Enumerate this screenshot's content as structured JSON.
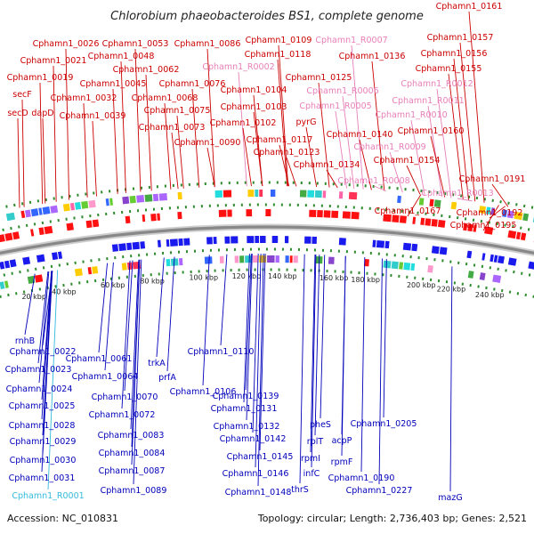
{
  "title": "Chlorobium phaeobacteroides BS1, complete genome",
  "footer": {
    "accession": "Accession: NC_010831",
    "summary": "Topology: circular; Length: 2,736,403 bp; Genes: 2,521"
  },
  "colors": {
    "forward_label": "#cc0000",
    "rna_label": "#e87fb8",
    "reverse_label": "#0000bb",
    "reverse_rna_label": "#33bbdd",
    "forward_arrow": "#ff1111",
    "reverse_arrow": "#1a1aee",
    "backbone": "#888888",
    "tick_dot": "#2e8b2e"
  },
  "ticks": [
    {
      "label": "20 kbp"
    },
    {
      "label": "40 kbp"
    },
    {
      "label": "60 kbp"
    },
    {
      "label": "80 kbp"
    },
    {
      "label": "100 kbp"
    },
    {
      "label": "120 kbp"
    },
    {
      "label": "140 kbp"
    },
    {
      "label": "160 kbp"
    },
    {
      "label": "180 kbp"
    },
    {
      "label": "200 kbp"
    },
    {
      "label": "220 kbp"
    },
    {
      "label": "240 kbp"
    }
  ],
  "top_labels": [
    {
      "text": "Cphamn1_0161",
      "kind": "gene"
    },
    {
      "text": "Cphamn1_0026",
      "kind": "gene"
    },
    {
      "text": "Cphamn1_0053",
      "kind": "gene"
    },
    {
      "text": "Cphamn1_0086",
      "kind": "gene"
    },
    {
      "text": "Cphamn1_0109",
      "kind": "gene"
    },
    {
      "text": "Cphamn1_R0007",
      "kind": "rna"
    },
    {
      "text": "Cphamn1_0157",
      "kind": "gene"
    },
    {
      "text": "Cphamn1_0021",
      "kind": "gene"
    },
    {
      "text": "Cphamn1_0048",
      "kind": "gene"
    },
    {
      "text": "Cphamn1_0118",
      "kind": "gene"
    },
    {
      "text": "Cphamn1_0136",
      "kind": "gene"
    },
    {
      "text": "Cphamn1_0156",
      "kind": "gene"
    },
    {
      "text": "Cphamn1_0019",
      "kind": "gene"
    },
    {
      "text": "Cphamn1_0062",
      "kind": "gene"
    },
    {
      "text": "Cphamn1_R0002",
      "kind": "rna"
    },
    {
      "text": "Cphamn1_0155",
      "kind": "gene"
    },
    {
      "text": "Cphamn1_0045",
      "kind": "gene"
    },
    {
      "text": "Cphamn1_0076",
      "kind": "gene"
    },
    {
      "text": "Cphamn1_0125",
      "kind": "gene"
    },
    {
      "text": "Cphamn1_R0012",
      "kind": "rna"
    },
    {
      "text": "secF",
      "kind": "gene"
    },
    {
      "text": "Cphamn1_0032",
      "kind": "gene"
    },
    {
      "text": "Cphamn1_0068",
      "kind": "gene"
    },
    {
      "text": "Cphamn1_0104",
      "kind": "gene"
    },
    {
      "text": "Cphamn1_R0006",
      "kind": "rna"
    },
    {
      "text": "Cphamn1_R0011",
      "kind": "rna"
    },
    {
      "text": "secD",
      "kind": "gene"
    },
    {
      "text": "dapD",
      "kind": "gene"
    },
    {
      "text": "Cphamn1_0039",
      "kind": "gene"
    },
    {
      "text": "Cphamn1_0075",
      "kind": "gene"
    },
    {
      "text": "Cphamn1_0103",
      "kind": "gene"
    },
    {
      "text": "Cphamn1_R0005",
      "kind": "rna"
    },
    {
      "text": "Cphamn1_R0010",
      "kind": "rna"
    },
    {
      "text": "Cphamn1_0073",
      "kind": "gene"
    },
    {
      "text": "Cphamn1_0102",
      "kind": "gene"
    },
    {
      "text": "pyrG",
      "kind": "gene"
    },
    {
      "text": "Cphamn1_0160",
      "kind": "gene"
    },
    {
      "text": "Cphamn1_0090",
      "kind": "gene"
    },
    {
      "text": "Cphamn1_0117",
      "kind": "gene"
    },
    {
      "text": "Cphamn1_0140",
      "kind": "gene"
    },
    {
      "text": "Cphamn1_R0009",
      "kind": "rna"
    },
    {
      "text": "Cphamn1_0123",
      "kind": "gene"
    },
    {
      "text": "Cphamn1_0154",
      "kind": "gene"
    },
    {
      "text": "Cphamn1_0134",
      "kind": "gene"
    },
    {
      "text": "Cphamn1_R0008",
      "kind": "rna"
    },
    {
      "text": "Cphamn1_0191",
      "kind": "gene"
    },
    {
      "text": "Cphamn1_R0013",
      "kind": "rna"
    },
    {
      "text": "Cphamn1_0167",
      "kind": "gene"
    },
    {
      "text": "Cphamn1_0192",
      "kind": "gene"
    },
    {
      "text": "Cphamn1_0195",
      "kind": "gene"
    }
  ],
  "bottom_labels": [
    {
      "text": "rnhB",
      "kind": "gene"
    },
    {
      "text": "Cphamn1_0022",
      "kind": "gene"
    },
    {
      "text": "Cphamn1_0023",
      "kind": "gene"
    },
    {
      "text": "Cphamn1_0024",
      "kind": "gene"
    },
    {
      "text": "Cphamn1_0025",
      "kind": "gene"
    },
    {
      "text": "Cphamn1_0028",
      "kind": "gene"
    },
    {
      "text": "Cphamn1_0029",
      "kind": "gene"
    },
    {
      "text": "Cphamn1_0030",
      "kind": "gene"
    },
    {
      "text": "Cphamn1_0031",
      "kind": "gene"
    },
    {
      "text": "Cphamn1_R0001",
      "kind": "rna"
    },
    {
      "text": "Cphamn1_0061",
      "kind": "gene"
    },
    {
      "text": "Cphamn1_0064",
      "kind": "gene"
    },
    {
      "text": "Cphamn1_0070",
      "kind": "gene"
    },
    {
      "text": "Cphamn1_0072",
      "kind": "gene"
    },
    {
      "text": "Cphamn1_0083",
      "kind": "gene"
    },
    {
      "text": "Cphamn1_0084",
      "kind": "gene"
    },
    {
      "text": "Cphamn1_0087",
      "kind": "gene"
    },
    {
      "text": "Cphamn1_0089",
      "kind": "gene"
    },
    {
      "text": "trkA",
      "kind": "gene"
    },
    {
      "text": "prfA",
      "kind": "gene"
    },
    {
      "text": "Cphamn1_0106",
      "kind": "gene"
    },
    {
      "text": "Cphamn1_0110",
      "kind": "gene"
    },
    {
      "text": "Cphamn1_0139",
      "kind": "gene"
    },
    {
      "text": "Cphamn1_0131",
      "kind": "gene"
    },
    {
      "text": "Cphamn1_0132",
      "kind": "gene"
    },
    {
      "text": "Cphamn1_0142",
      "kind": "gene"
    },
    {
      "text": "Cphamn1_0145",
      "kind": "gene"
    },
    {
      "text": "Cphamn1_0146",
      "kind": "gene"
    },
    {
      "text": "Cphamn1_0148",
      "kind": "gene"
    },
    {
      "text": "pheS",
      "kind": "gene"
    },
    {
      "text": "rplT",
      "kind": "gene"
    },
    {
      "text": "rpmI",
      "kind": "gene"
    },
    {
      "text": "infC",
      "kind": "gene"
    },
    {
      "text": "thrS",
      "kind": "gene"
    },
    {
      "text": "acpP",
      "kind": "gene"
    },
    {
      "text": "rpmF",
      "kind": "gene"
    },
    {
      "text": "Cphamn1_0190",
      "kind": "gene"
    },
    {
      "text": "Cphamn1_0205",
      "kind": "gene"
    },
    {
      "text": "Cphamn1_0227",
      "kind": "gene"
    },
    {
      "text": "mazG",
      "kind": "gene"
    }
  ]
}
